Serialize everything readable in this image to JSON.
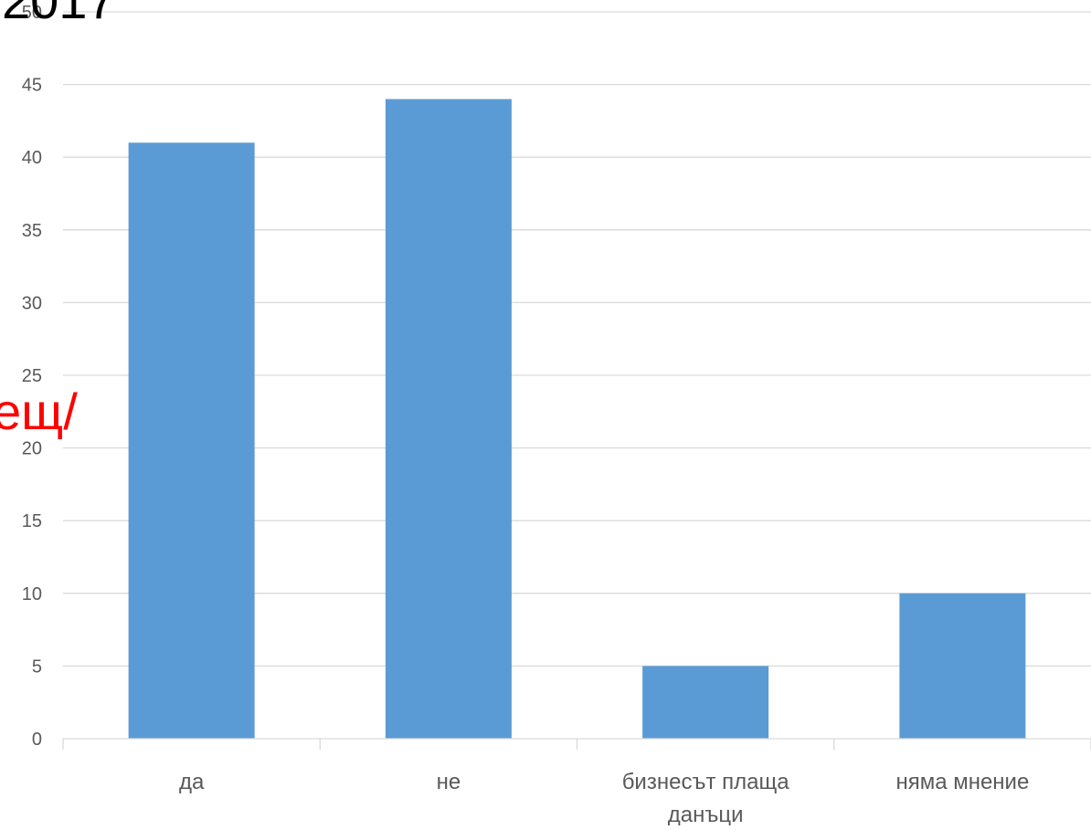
{
  "overlay": {
    "fragment_top": "2017",
    "fragment_left": "ещ/",
    "fragment_left_color": "#ff0000",
    "fragment_top_color": "#000000"
  },
  "colors": {
    "bar": "#5b9bd5",
    "grid": "#d9d9d9",
    "axis_text": "#595959"
  },
  "chart_data": {
    "type": "bar",
    "title": "",
    "xlabel": "",
    "ylabel": "",
    "categories": [
      "да",
      "не",
      "бизнесът плаща данъци",
      "няма мнение"
    ],
    "category_lines": [
      [
        "да"
      ],
      [
        "не"
      ],
      [
        "бизнесът плаща",
        "данъци"
      ],
      [
        "няма мнение"
      ]
    ],
    "values": [
      41,
      44,
      5,
      10
    ],
    "ylim": [
      0,
      50
    ],
    "yticks": [
      0,
      5,
      10,
      15,
      20,
      25,
      30,
      35,
      40,
      45,
      50
    ],
    "grid": true,
    "legend": "none"
  }
}
